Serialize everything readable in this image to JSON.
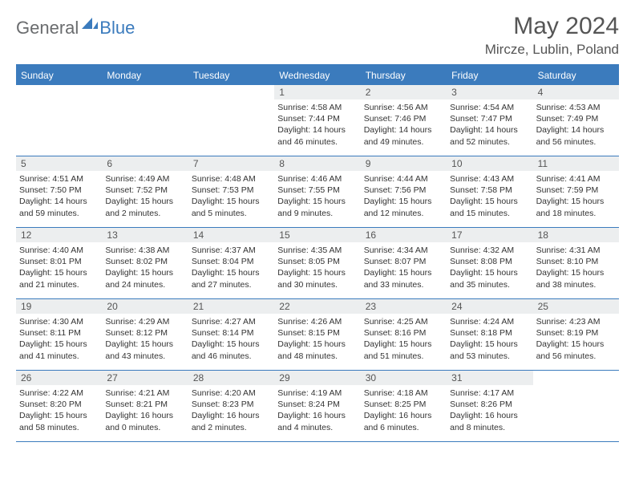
{
  "logo": {
    "text1": "General",
    "text2": "Blue"
  },
  "title": "May 2024",
  "location": "Mircze, Lublin, Poland",
  "colors": {
    "accent": "#3b7bbd",
    "header_bg": "#3b7bbd",
    "daynum_bg": "#eceeef",
    "text": "#333333",
    "muted": "#555555",
    "logo_gray": "#6a6c6e"
  },
  "weekdays": [
    "Sunday",
    "Monday",
    "Tuesday",
    "Wednesday",
    "Thursday",
    "Friday",
    "Saturday"
  ],
  "weeks": [
    [
      null,
      null,
      null,
      {
        "n": "1",
        "sr": "4:58 AM",
        "ss": "7:44 PM",
        "dl": "14 hours and 46 minutes."
      },
      {
        "n": "2",
        "sr": "4:56 AM",
        "ss": "7:46 PM",
        "dl": "14 hours and 49 minutes."
      },
      {
        "n": "3",
        "sr": "4:54 AM",
        "ss": "7:47 PM",
        "dl": "14 hours and 52 minutes."
      },
      {
        "n": "4",
        "sr": "4:53 AM",
        "ss": "7:49 PM",
        "dl": "14 hours and 56 minutes."
      }
    ],
    [
      {
        "n": "5",
        "sr": "4:51 AM",
        "ss": "7:50 PM",
        "dl": "14 hours and 59 minutes."
      },
      {
        "n": "6",
        "sr": "4:49 AM",
        "ss": "7:52 PM",
        "dl": "15 hours and 2 minutes."
      },
      {
        "n": "7",
        "sr": "4:48 AM",
        "ss": "7:53 PM",
        "dl": "15 hours and 5 minutes."
      },
      {
        "n": "8",
        "sr": "4:46 AM",
        "ss": "7:55 PM",
        "dl": "15 hours and 9 minutes."
      },
      {
        "n": "9",
        "sr": "4:44 AM",
        "ss": "7:56 PM",
        "dl": "15 hours and 12 minutes."
      },
      {
        "n": "10",
        "sr": "4:43 AM",
        "ss": "7:58 PM",
        "dl": "15 hours and 15 minutes."
      },
      {
        "n": "11",
        "sr": "4:41 AM",
        "ss": "7:59 PM",
        "dl": "15 hours and 18 minutes."
      }
    ],
    [
      {
        "n": "12",
        "sr": "4:40 AM",
        "ss": "8:01 PM",
        "dl": "15 hours and 21 minutes."
      },
      {
        "n": "13",
        "sr": "4:38 AM",
        "ss": "8:02 PM",
        "dl": "15 hours and 24 minutes."
      },
      {
        "n": "14",
        "sr": "4:37 AM",
        "ss": "8:04 PM",
        "dl": "15 hours and 27 minutes."
      },
      {
        "n": "15",
        "sr": "4:35 AM",
        "ss": "8:05 PM",
        "dl": "15 hours and 30 minutes."
      },
      {
        "n": "16",
        "sr": "4:34 AM",
        "ss": "8:07 PM",
        "dl": "15 hours and 33 minutes."
      },
      {
        "n": "17",
        "sr": "4:32 AM",
        "ss": "8:08 PM",
        "dl": "15 hours and 35 minutes."
      },
      {
        "n": "18",
        "sr": "4:31 AM",
        "ss": "8:10 PM",
        "dl": "15 hours and 38 minutes."
      }
    ],
    [
      {
        "n": "19",
        "sr": "4:30 AM",
        "ss": "8:11 PM",
        "dl": "15 hours and 41 minutes."
      },
      {
        "n": "20",
        "sr": "4:29 AM",
        "ss": "8:12 PM",
        "dl": "15 hours and 43 minutes."
      },
      {
        "n": "21",
        "sr": "4:27 AM",
        "ss": "8:14 PM",
        "dl": "15 hours and 46 minutes."
      },
      {
        "n": "22",
        "sr": "4:26 AM",
        "ss": "8:15 PM",
        "dl": "15 hours and 48 minutes."
      },
      {
        "n": "23",
        "sr": "4:25 AM",
        "ss": "8:16 PM",
        "dl": "15 hours and 51 minutes."
      },
      {
        "n": "24",
        "sr": "4:24 AM",
        "ss": "8:18 PM",
        "dl": "15 hours and 53 minutes."
      },
      {
        "n": "25",
        "sr": "4:23 AM",
        "ss": "8:19 PM",
        "dl": "15 hours and 56 minutes."
      }
    ],
    [
      {
        "n": "26",
        "sr": "4:22 AM",
        "ss": "8:20 PM",
        "dl": "15 hours and 58 minutes."
      },
      {
        "n": "27",
        "sr": "4:21 AM",
        "ss": "8:21 PM",
        "dl": "16 hours and 0 minutes."
      },
      {
        "n": "28",
        "sr": "4:20 AM",
        "ss": "8:23 PM",
        "dl": "16 hours and 2 minutes."
      },
      {
        "n": "29",
        "sr": "4:19 AM",
        "ss": "8:24 PM",
        "dl": "16 hours and 4 minutes."
      },
      {
        "n": "30",
        "sr": "4:18 AM",
        "ss": "8:25 PM",
        "dl": "16 hours and 6 minutes."
      },
      {
        "n": "31",
        "sr": "4:17 AM",
        "ss": "8:26 PM",
        "dl": "16 hours and 8 minutes."
      },
      null
    ]
  ],
  "labels": {
    "sunrise": "Sunrise: ",
    "sunset": "Sunset: ",
    "daylight": "Daylight: "
  }
}
